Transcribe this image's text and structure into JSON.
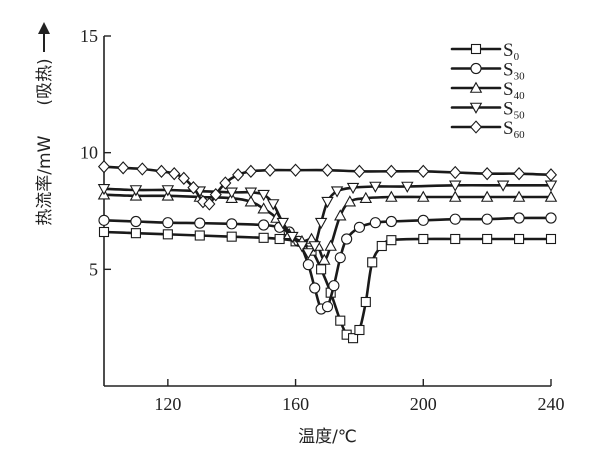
{
  "chart_data": {
    "type": "line",
    "xlabel": "温度/℃",
    "ylabel": "热流率/mW",
    "endotherm_label": "(吸热)",
    "xlim": [
      100,
      240
    ],
    "ylim": [
      0,
      15
    ],
    "xticks": [
      120,
      160,
      200,
      240
    ],
    "yticks": [
      5,
      10,
      15
    ],
    "legend_position": "top-right",
    "grid": false,
    "series": [
      {
        "name": "S0",
        "base": "S",
        "sub": "0",
        "marker": "square",
        "points": [
          [
            100,
            6.6
          ],
          [
            110,
            6.55
          ],
          [
            120,
            6.5
          ],
          [
            130,
            6.45
          ],
          [
            140,
            6.4
          ],
          [
            150,
            6.35
          ],
          [
            155,
            6.3
          ],
          [
            160,
            6.2
          ],
          [
            165,
            5.8
          ],
          [
            168,
            5.0
          ],
          [
            171,
            4.0
          ],
          [
            174,
            2.8
          ],
          [
            176,
            2.2
          ],
          [
            178,
            2.05
          ],
          [
            180,
            2.4
          ],
          [
            182,
            3.6
          ],
          [
            184,
            5.3
          ],
          [
            187,
            6.0
          ],
          [
            190,
            6.25
          ],
          [
            200,
            6.3
          ],
          [
            210,
            6.3
          ],
          [
            220,
            6.3
          ],
          [
            230,
            6.3
          ],
          [
            240,
            6.3
          ]
        ]
      },
      {
        "name": "S30",
        "base": "S",
        "sub": "30",
        "marker": "circle",
        "points": [
          [
            100,
            7.1
          ],
          [
            110,
            7.05
          ],
          [
            120,
            7.0
          ],
          [
            130,
            6.98
          ],
          [
            140,
            6.95
          ],
          [
            150,
            6.9
          ],
          [
            155,
            6.8
          ],
          [
            158,
            6.6
          ],
          [
            161,
            6.2
          ],
          [
            164,
            5.2
          ],
          [
            166,
            4.2
          ],
          [
            168,
            3.3
          ],
          [
            170,
            3.4
          ],
          [
            172,
            4.3
          ],
          [
            174,
            5.5
          ],
          [
            176,
            6.3
          ],
          [
            180,
            6.8
          ],
          [
            185,
            7.0
          ],
          [
            190,
            7.05
          ],
          [
            200,
            7.1
          ],
          [
            210,
            7.15
          ],
          [
            220,
            7.15
          ],
          [
            230,
            7.2
          ],
          [
            240,
            7.2
          ]
        ]
      },
      {
        "name": "S40",
        "base": "S",
        "sub": "40",
        "marker": "triangle-up",
        "points": [
          [
            100,
            8.2
          ],
          [
            110,
            8.15
          ],
          [
            120,
            8.15
          ],
          [
            130,
            8.1
          ],
          [
            140,
            8.05
          ],
          [
            146,
            7.9
          ],
          [
            150,
            7.6
          ],
          [
            154,
            7.2
          ],
          [
            158,
            6.5
          ],
          [
            162,
            6.2
          ],
          [
            165,
            6.3
          ],
          [
            167,
            6.0
          ],
          [
            169,
            5.4
          ],
          [
            171,
            6.0
          ],
          [
            174,
            7.3
          ],
          [
            177,
            7.9
          ],
          [
            182,
            8.05
          ],
          [
            190,
            8.1
          ],
          [
            200,
            8.1
          ],
          [
            210,
            8.1
          ],
          [
            220,
            8.1
          ],
          [
            230,
            8.1
          ],
          [
            240,
            8.1
          ]
        ]
      },
      {
        "name": "S50",
        "base": "S",
        "sub": "50",
        "marker": "triangle-down",
        "points": [
          [
            100,
            8.45
          ],
          [
            110,
            8.4
          ],
          [
            120,
            8.4
          ],
          [
            130,
            8.35
          ],
          [
            140,
            8.3
          ],
          [
            146,
            8.3
          ],
          [
            150,
            8.2
          ],
          [
            153,
            7.8
          ],
          [
            156,
            7.0
          ],
          [
            159,
            6.4
          ],
          [
            162,
            6.0
          ],
          [
            164,
            5.7
          ],
          [
            166,
            6.0
          ],
          [
            168,
            7.0
          ],
          [
            170,
            7.9
          ],
          [
            173,
            8.35
          ],
          [
            178,
            8.5
          ],
          [
            185,
            8.55
          ],
          [
            195,
            8.55
          ],
          [
            210,
            8.6
          ],
          [
            225,
            8.6
          ],
          [
            240,
            8.6
          ]
        ]
      },
      {
        "name": "S60",
        "base": "S",
        "sub": "60",
        "marker": "diamond",
        "points": [
          [
            100,
            9.4
          ],
          [
            106,
            9.35
          ],
          [
            112,
            9.3
          ],
          [
            118,
            9.2
          ],
          [
            122,
            9.1
          ],
          [
            125,
            8.9
          ],
          [
            128,
            8.5
          ],
          [
            131,
            7.9
          ],
          [
            133,
            7.8
          ],
          [
            135,
            8.2
          ],
          [
            138,
            8.7
          ],
          [
            142,
            9.05
          ],
          [
            146,
            9.2
          ],
          [
            152,
            9.25
          ],
          [
            160,
            9.25
          ],
          [
            170,
            9.25
          ],
          [
            180,
            9.2
          ],
          [
            190,
            9.2
          ],
          [
            200,
            9.2
          ],
          [
            210,
            9.15
          ],
          [
            220,
            9.1
          ],
          [
            230,
            9.1
          ],
          [
            240,
            9.05
          ]
        ]
      }
    ]
  }
}
